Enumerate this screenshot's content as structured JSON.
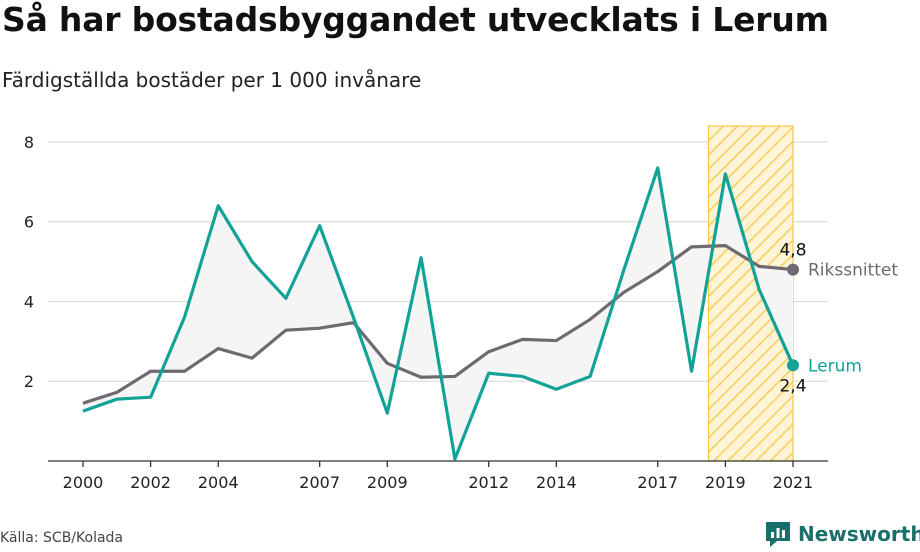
{
  "title": "Så har bostadsbyggandet utvecklats i Lerum",
  "subtitle": "Färdigställda bostäder per 1 000 invånare",
  "source": "Källa: SCB/Kolada",
  "brand": "Newsworthy",
  "colors": {
    "lerum": "#12a396",
    "riks": "#6f6a72",
    "fill": "#f5f5f5",
    "highlight": "#f5c842",
    "brand": "#1b6f6b"
  },
  "chart_data": {
    "type": "line",
    "x": [
      2000,
      2001,
      2002,
      2003,
      2004,
      2005,
      2006,
      2007,
      2008,
      2009,
      2010,
      2011,
      2012,
      2013,
      2014,
      2015,
      2016,
      2017,
      2018,
      2019,
      2020,
      2021
    ],
    "x_tick_labels": [
      "2000",
      "2002",
      "2004",
      "2007",
      "2009",
      "2012",
      "2014",
      "2017",
      "2019",
      "2021"
    ],
    "y_ticks": [
      2,
      4,
      6,
      8
    ],
    "ylim": [
      0,
      8.4
    ],
    "grid": true,
    "highlight_range": [
      2018.5,
      2021
    ],
    "series": [
      {
        "name": "Lerum",
        "key": "lerum",
        "values": [
          1.25,
          1.55,
          1.6,
          3.6,
          6.4,
          5.0,
          4.08,
          5.9,
          3.6,
          1.2,
          5.1,
          0.05,
          2.2,
          2.12,
          1.8,
          2.12,
          4.8,
          7.35,
          2.25,
          7.2,
          4.3,
          2.4
        ]
      },
      {
        "name": "Rikssnittet",
        "key": "riks",
        "values": [
          1.45,
          1.72,
          2.25,
          2.25,
          2.82,
          2.58,
          3.28,
          3.33,
          3.47,
          2.45,
          2.1,
          2.12,
          2.74,
          3.05,
          3.02,
          3.55,
          4.23,
          4.75,
          5.37,
          5.4,
          4.88,
          4.8
        ]
      }
    ],
    "end_labels": {
      "lerum_value": "2,4",
      "riks_value": "4,8"
    }
  }
}
